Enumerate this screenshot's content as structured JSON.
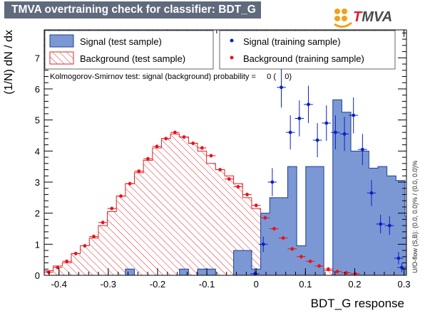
{
  "title": "TMVA overtraining check for classifier: BDT_G",
  "logo": {
    "lead": "T",
    "rest": "MVA"
  },
  "chart_data": {
    "type": "histogram",
    "xlabel": "BDT_G response",
    "ylabel": "(1/N) dN / dx",
    "xlim": [
      -0.43,
      0.305
    ],
    "ylim": [
      0,
      7.9
    ],
    "xticks": [
      "-0.4",
      "-0.3",
      "-0.2",
      "-0.1",
      "0",
      "0.1",
      "0.2",
      "0.3"
    ],
    "yticks": [
      "0",
      "1",
      "2",
      "3",
      "4",
      "5",
      "6",
      "7"
    ],
    "bin_edges_start": -0.43,
    "bin_width": 0.0183,
    "legend": {
      "signal_test": "Signal (test sample)",
      "background_test": "Background (test sample)",
      "signal_train": "Signal (training sample)",
      "background_train": "Background (training sample)"
    },
    "ks_text": "Kolmogorov-Smirnov test: signal (background) probability =     0 (    0)",
    "side_text": "U/O-flow (S,B): (0.0, 0.0)% / (0.0, 0.0)%",
    "colors": {
      "signal_fill": "#7b98d4",
      "signal_line": "#1c3f94",
      "background": "#e0242a",
      "signal_point": "#0b1fc9",
      "background_point": "#e8121a"
    },
    "series": [
      {
        "name": "Signal (test sample)",
        "values": [
          0,
          0,
          0,
          0,
          0,
          0,
          0,
          0,
          0,
          0.2,
          0,
          0,
          0,
          0,
          0,
          0.2,
          0,
          0.2,
          0.2,
          0,
          0,
          0.8,
          0.8,
          0.2,
          2.0,
          2.5,
          2.5,
          3.5,
          0.95,
          3.5,
          3.5,
          0,
          5.65,
          5.25,
          4.0,
          4.0,
          3.45,
          3.5,
          3.2,
          3.05,
          1.9,
          1.9,
          1.2,
          0.8
        ]
      },
      {
        "name": "Background (test sample)",
        "values": [
          0.15,
          0.3,
          0.4,
          0.7,
          0.95,
          1.2,
          1.6,
          2.05,
          2.55,
          2.95,
          3.3,
          3.7,
          4.1,
          4.4,
          4.55,
          4.45,
          4.25,
          4.0,
          3.6,
          3.4,
          3.2,
          2.95,
          2.5,
          2.15,
          1.8,
          1.5,
          1.15,
          0.8,
          0.55,
          0.35,
          0.22,
          0.15,
          0.05,
          0.02,
          0.02,
          0.02,
          0.02,
          0.02,
          0.02,
          0.02,
          0.02,
          0.02,
          0.02,
          0.02
        ]
      },
      {
        "name": "Signal (training sample)",
        "points": [
          {
            "x": -0.0022,
            "y": 0.05,
            "err": 0.12
          },
          {
            "x": 0.0145,
            "y": 1.0,
            "err": 0.25
          },
          {
            "x": 0.0328,
            "y": 3.0,
            "err": 0.45
          },
          {
            "x": 0.0511,
            "y": 6.05,
            "err": 0.65
          },
          {
            "x": 0.0694,
            "y": 4.6,
            "err": 0.55
          },
          {
            "x": 0.0877,
            "y": 5.05,
            "err": 0.58
          },
          {
            "x": 0.106,
            "y": 5.5,
            "err": 0.6
          },
          {
            "x": 0.1243,
            "y": 4.35,
            "err": 0.55
          },
          {
            "x": 0.1426,
            "y": 4.9,
            "err": 0.57
          },
          {
            "x": 0.1609,
            "y": 4.6,
            "err": 0.55
          },
          {
            "x": 0.1792,
            "y": 4.55,
            "err": 0.55
          },
          {
            "x": 0.1975,
            "y": 5.15,
            "err": 0.58
          },
          {
            "x": 0.2158,
            "y": 4.05,
            "err": 0.5
          },
          {
            "x": 0.2341,
            "y": 2.65,
            "err": 0.42
          },
          {
            "x": 0.2524,
            "y": 1.65,
            "err": 0.3
          },
          {
            "x": 0.2707,
            "y": 1.6,
            "err": 0.3
          },
          {
            "x": 0.289,
            "y": 0.55,
            "err": 0.2
          },
          {
            "x": 0.2955,
            "y": 0.25,
            "err": 0.15
          }
        ]
      },
      {
        "name": "Background (training sample)",
        "points": [
          {
            "x": -0.4209,
            "y": 0.1
          },
          {
            "x": -0.4026,
            "y": 0.25
          },
          {
            "x": -0.3843,
            "y": 0.45
          },
          {
            "x": -0.366,
            "y": 0.7
          },
          {
            "x": -0.3477,
            "y": 0.95
          },
          {
            "x": -0.3294,
            "y": 1.25
          },
          {
            "x": -0.3111,
            "y": 1.7
          },
          {
            "x": -0.2928,
            "y": 2.15
          },
          {
            "x": -0.2745,
            "y": 2.55
          },
          {
            "x": -0.2562,
            "y": 2.95
          },
          {
            "x": -0.2379,
            "y": 3.35
          },
          {
            "x": -0.2196,
            "y": 3.75
          },
          {
            "x": -0.2013,
            "y": 4.15
          },
          {
            "x": -0.183,
            "y": 4.4
          },
          {
            "x": -0.1647,
            "y": 4.6
          },
          {
            "x": -0.1464,
            "y": 4.45
          },
          {
            "x": -0.1281,
            "y": 4.25
          },
          {
            "x": -0.1098,
            "y": 4.1
          },
          {
            "x": -0.0915,
            "y": 3.85
          },
          {
            "x": -0.0732,
            "y": 3.4
          },
          {
            "x": -0.0549,
            "y": 3.1
          },
          {
            "x": -0.0366,
            "y": 2.85
          },
          {
            "x": -0.0183,
            "y": 2.6
          },
          {
            "x": 0.0,
            "y": 2.25
          },
          {
            "x": 0.0183,
            "y": 1.85
          },
          {
            "x": 0.0366,
            "y": 1.5
          },
          {
            "x": 0.0549,
            "y": 1.2
          },
          {
            "x": 0.0732,
            "y": 0.85
          },
          {
            "x": 0.0915,
            "y": 0.6
          },
          {
            "x": 0.1098,
            "y": 0.45
          },
          {
            "x": 0.1281,
            "y": 0.3
          },
          {
            "x": 0.1464,
            "y": 0.2
          },
          {
            "x": 0.1647,
            "y": 0.12
          },
          {
            "x": 0.183,
            "y": 0.08
          },
          {
            "x": 0.2013,
            "y": 0.05
          }
        ]
      }
    ]
  }
}
